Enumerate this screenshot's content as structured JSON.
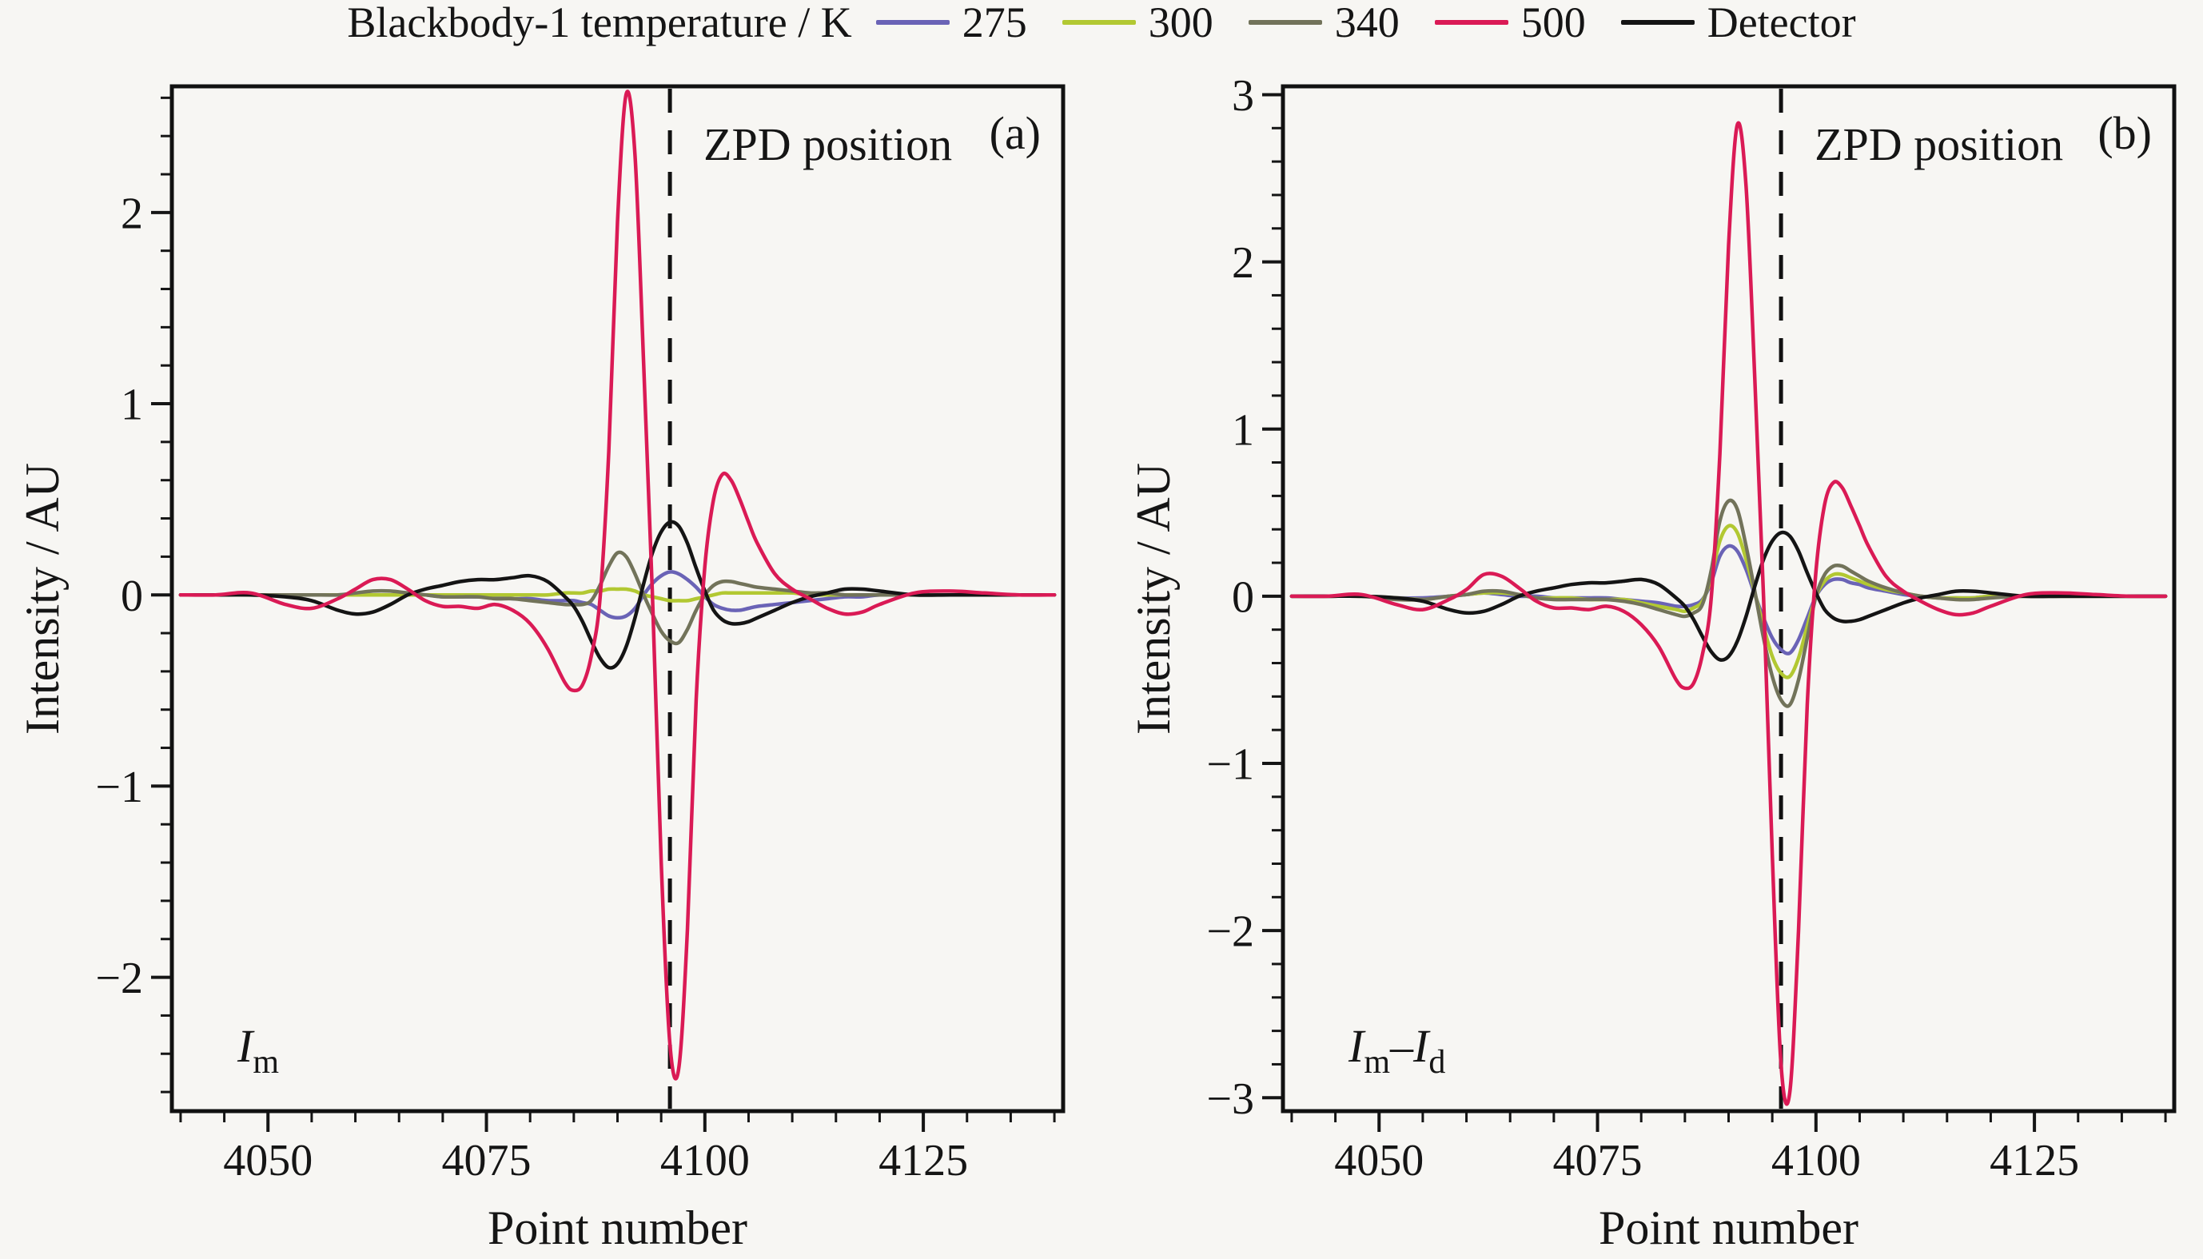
{
  "figure": {
    "background": "#f7f6f3",
    "legend": {
      "title": "Blackbody-1 temperature / K",
      "position": "top-center",
      "items": [
        {
          "label": "275",
          "color": "#6a63b6"
        },
        {
          "label": "300",
          "color": "#b2c832"
        },
        {
          "label": "340",
          "color": "#72735a"
        },
        {
          "label": "500",
          "color": "#da1a55"
        },
        {
          "label": "Detector",
          "color": "#141414"
        }
      ]
    }
  },
  "chart_data": [
    {
      "type": "line",
      "panel_label": "(a)",
      "annotation": "ZPD position",
      "corner_label": {
        "text": "Im",
        "parts": [
          {
            "t": "I",
            "italic": true
          },
          {
            "t": "m",
            "sub": true
          }
        ]
      },
      "xlabel": "Point number",
      "ylabel": "Intensity / AU",
      "xlim": [
        4039,
        4141
      ],
      "ylim": [
        -2.7,
        2.66
      ],
      "xticks": [
        4050,
        4075,
        4100,
        4125
      ],
      "yticks": [
        -2,
        -1,
        0,
        1,
        2
      ],
      "x_minor_step": 5,
      "y_minor_step": 0.2,
      "grid": false,
      "zpd_x": 4096,
      "x": [
        4040,
        4044,
        4048,
        4052,
        4055,
        4058,
        4060,
        4062,
        4064,
        4066,
        4068,
        4070,
        4072,
        4074,
        4076,
        4078,
        4080,
        4082,
        4084,
        4085,
        4086,
        4087,
        4088,
        4089,
        4090,
        4091,
        4092,
        4093,
        4094,
        4095,
        4096,
        4097,
        4098,
        4099,
        4100,
        4101,
        4102,
        4103,
        4104,
        4105,
        4106,
        4108,
        4110,
        4112,
        4114,
        4116,
        4118,
        4120,
        4124,
        4128,
        4132,
        4136,
        4140
      ],
      "series": [
        {
          "name": "275",
          "color": "#6a63b6",
          "values": [
            0,
            0,
            0,
            0,
            0,
            0,
            0,
            0,
            0,
            0,
            0,
            -0.01,
            -0.01,
            -0.01,
            -0.01,
            -0.02,
            -0.02,
            -0.03,
            -0.03,
            -0.03,
            -0.04,
            -0.05,
            -0.08,
            -0.11,
            -0.12,
            -0.11,
            -0.07,
            0,
            0.06,
            0.1,
            0.12,
            0.11,
            0.08,
            0.04,
            -0.01,
            -0.05,
            -0.07,
            -0.08,
            -0.08,
            -0.07,
            -0.06,
            -0.05,
            -0.04,
            -0.03,
            -0.02,
            -0.01,
            -0.01,
            0,
            0,
            0,
            0,
            0,
            0
          ]
        },
        {
          "name": "300",
          "color": "#b2c832",
          "values": [
            0,
            0,
            0,
            0,
            0,
            0,
            0,
            0,
            0,
            0,
            0,
            0,
            0,
            0,
            0,
            0,
            0,
            0,
            0.01,
            0.01,
            0.01,
            0.02,
            0.02,
            0.03,
            0.03,
            0.03,
            0.02,
            0,
            -0.01,
            -0.02,
            -0.03,
            -0.03,
            -0.03,
            -0.02,
            -0.01,
            0,
            0.01,
            0.01,
            0.01,
            0.01,
            0.01,
            0.01,
            0.01,
            0,
            0,
            0,
            0,
            0,
            0,
            0,
            0,
            0,
            0
          ]
        },
        {
          "name": "340",
          "color": "#72735a",
          "values": [
            0,
            0,
            0,
            0,
            0,
            0,
            0.01,
            0.02,
            0.02,
            0.01,
            0,
            -0.01,
            -0.01,
            -0.01,
            -0.02,
            -0.02,
            -0.03,
            -0.04,
            -0.05,
            -0.05,
            -0.05,
            -0.03,
            0.05,
            0.15,
            0.22,
            0.2,
            0.11,
            0,
            -0.1,
            -0.19,
            -0.24,
            -0.25,
            -0.18,
            -0.08,
            0,
            0.05,
            0.07,
            0.07,
            0.06,
            0.05,
            0.04,
            0.03,
            0.02,
            0.01,
            0.01,
            0,
            0,
            0,
            0,
            0,
            0,
            0,
            0
          ]
        },
        {
          "name": "Detector",
          "color": "#141414",
          "values": [
            0,
            0,
            0,
            -0.01,
            -0.03,
            -0.08,
            -0.1,
            -0.09,
            -0.05,
            0,
            0.03,
            0.05,
            0.07,
            0.08,
            0.08,
            0.09,
            0.1,
            0.07,
            -0.01,
            -0.06,
            -0.14,
            -0.24,
            -0.33,
            -0.38,
            -0.36,
            -0.27,
            -0.12,
            0.06,
            0.22,
            0.33,
            0.38,
            0.36,
            0.27,
            0.14,
            0.02,
            -0.08,
            -0.13,
            -0.15,
            -0.15,
            -0.14,
            -0.12,
            -0.08,
            -0.04,
            -0.01,
            0.01,
            0.03,
            0.03,
            0.02,
            0,
            0,
            0,
            0,
            0
          ]
        },
        {
          "name": "500",
          "color": "#da1a55",
          "values": [
            0,
            0,
            0.01,
            -0.05,
            -0.07,
            -0.02,
            0.03,
            0.08,
            0.08,
            0.03,
            -0.03,
            -0.06,
            -0.06,
            -0.07,
            -0.05,
            -0.08,
            -0.15,
            -0.28,
            -0.46,
            -0.5,
            -0.47,
            -0.32,
            -0.02,
            0.75,
            1.95,
            2.62,
            2.3,
            1.2,
            0,
            -1.4,
            -2.35,
            -2.48,
            -1.75,
            -0.55,
            0.15,
            0.5,
            0.63,
            0.6,
            0.5,
            0.38,
            0.27,
            0.11,
            0.03,
            -0.02,
            -0.07,
            -0.1,
            -0.09,
            -0.05,
            0.01,
            0.02,
            0.01,
            0,
            0
          ]
        }
      ]
    },
    {
      "type": "line",
      "panel_label": "(b)",
      "annotation": "ZPD position",
      "corner_label": {
        "text": "Im–Id",
        "parts": [
          {
            "t": "I",
            "italic": true
          },
          {
            "t": "m",
            "sub": true
          },
          {
            "t": "–",
            "italic": false
          },
          {
            "t": "I",
            "italic": true
          },
          {
            "t": "d",
            "sub": true
          }
        ]
      },
      "xlabel": "Point number",
      "ylabel": "Intensity / AU",
      "xlim": [
        4039,
        4141
      ],
      "ylim": [
        -3.08,
        3.05
      ],
      "xticks": [
        4050,
        4075,
        4100,
        4125
      ],
      "yticks": [
        -3,
        -2,
        -1,
        0,
        1,
        2,
        3
      ],
      "x_minor_step": 5,
      "y_minor_step": 0.2,
      "grid": false,
      "zpd_x": 4096,
      "x": [
        4040,
        4044,
        4048,
        4052,
        4055,
        4058,
        4060,
        4062,
        4064,
        4066,
        4068,
        4070,
        4072,
        4074,
        4076,
        4078,
        4080,
        4082,
        4084,
        4085,
        4086,
        4087,
        4088,
        4089,
        4090,
        4091,
        4092,
        4093,
        4094,
        4095,
        4096,
        4097,
        4098,
        4099,
        4100,
        4101,
        4102,
        4103,
        4104,
        4105,
        4106,
        4108,
        4110,
        4112,
        4114,
        4116,
        4118,
        4120,
        4124,
        4128,
        4132,
        4136,
        4140
      ],
      "series": [
        {
          "name": "275",
          "color": "#6a63b6",
          "values": [
            0,
            0,
            0,
            -0.01,
            -0.01,
            0,
            0.01,
            0.02,
            0.01,
            0,
            0,
            -0.01,
            -0.01,
            -0.01,
            -0.01,
            -0.02,
            -0.03,
            -0.04,
            -0.06,
            -0.06,
            -0.05,
            -0.02,
            0.08,
            0.24,
            0.3,
            0.27,
            0.16,
            0.01,
            -0.13,
            -0.25,
            -0.32,
            -0.34,
            -0.26,
            -0.13,
            0,
            0.07,
            0.1,
            0.1,
            0.08,
            0.07,
            0.05,
            0.03,
            0.01,
            0,
            -0.01,
            -0.01,
            -0.01,
            0,
            0,
            0,
            0,
            0,
            0
          ]
        },
        {
          "name": "300",
          "color": "#b2c832",
          "values": [
            0,
            0,
            0,
            -0.01,
            -0.02,
            0,
            0.01,
            0.02,
            0.02,
            0.01,
            -0.01,
            -0.01,
            -0.01,
            -0.02,
            -0.02,
            -0.02,
            -0.04,
            -0.06,
            -0.08,
            -0.09,
            -0.07,
            -0.03,
            0.11,
            0.33,
            0.42,
            0.38,
            0.22,
            0.02,
            -0.18,
            -0.36,
            -0.46,
            -0.48,
            -0.37,
            -0.18,
            0,
            0.09,
            0.13,
            0.13,
            0.11,
            0.09,
            0.07,
            0.04,
            0.02,
            0,
            -0.01,
            -0.01,
            -0.01,
            0,
            0,
            0,
            0,
            0,
            0
          ]
        },
        {
          "name": "340",
          "color": "#72735a",
          "values": [
            0,
            0,
            0,
            -0.02,
            -0.02,
            0,
            0.01,
            0.03,
            0.03,
            0.01,
            -0.01,
            -0.02,
            -0.02,
            -0.02,
            -0.02,
            -0.03,
            -0.05,
            -0.08,
            -0.11,
            -0.12,
            -0.1,
            -0.05,
            0.15,
            0.45,
            0.57,
            0.52,
            0.3,
            0.03,
            -0.25,
            -0.48,
            -0.62,
            -0.65,
            -0.5,
            -0.25,
            0,
            0.13,
            0.18,
            0.18,
            0.15,
            0.12,
            0.09,
            0.05,
            0.02,
            0,
            -0.01,
            -0.02,
            -0.02,
            -0.01,
            0,
            0,
            0,
            0,
            0
          ]
        },
        {
          "name": "Detector",
          "color": "#141414",
          "values": [
            0,
            0,
            0,
            -0.01,
            -0.03,
            -0.08,
            -0.1,
            -0.09,
            -0.05,
            0,
            0.03,
            0.05,
            0.07,
            0.08,
            0.08,
            0.09,
            0.1,
            0.07,
            -0.01,
            -0.06,
            -0.14,
            -0.24,
            -0.33,
            -0.38,
            -0.36,
            -0.27,
            -0.12,
            0.06,
            0.22,
            0.33,
            0.38,
            0.36,
            0.27,
            0.14,
            0.02,
            -0.08,
            -0.13,
            -0.15,
            -0.15,
            -0.14,
            -0.12,
            -0.08,
            -0.04,
            -0.01,
            0.01,
            0.03,
            0.03,
            0.02,
            0,
            0,
            0,
            0,
            0
          ]
        },
        {
          "name": "500",
          "color": "#da1a55",
          "values": [
            0,
            0,
            0.01,
            -0.05,
            -0.08,
            -0.02,
            0.04,
            0.13,
            0.12,
            0.05,
            -0.03,
            -0.07,
            -0.07,
            -0.08,
            -0.06,
            -0.09,
            -0.17,
            -0.3,
            -0.5,
            -0.55,
            -0.52,
            -0.35,
            -0.02,
            0.85,
            2.1,
            2.82,
            2.45,
            1.3,
            0,
            -1.55,
            -2.8,
            -2.97,
            -2.0,
            -0.65,
            0.15,
            0.55,
            0.68,
            0.65,
            0.54,
            0.42,
            0.3,
            0.12,
            0.03,
            -0.03,
            -0.08,
            -0.11,
            -0.1,
            -0.06,
            0.01,
            0.02,
            0.01,
            0,
            0
          ]
        }
      ]
    }
  ]
}
